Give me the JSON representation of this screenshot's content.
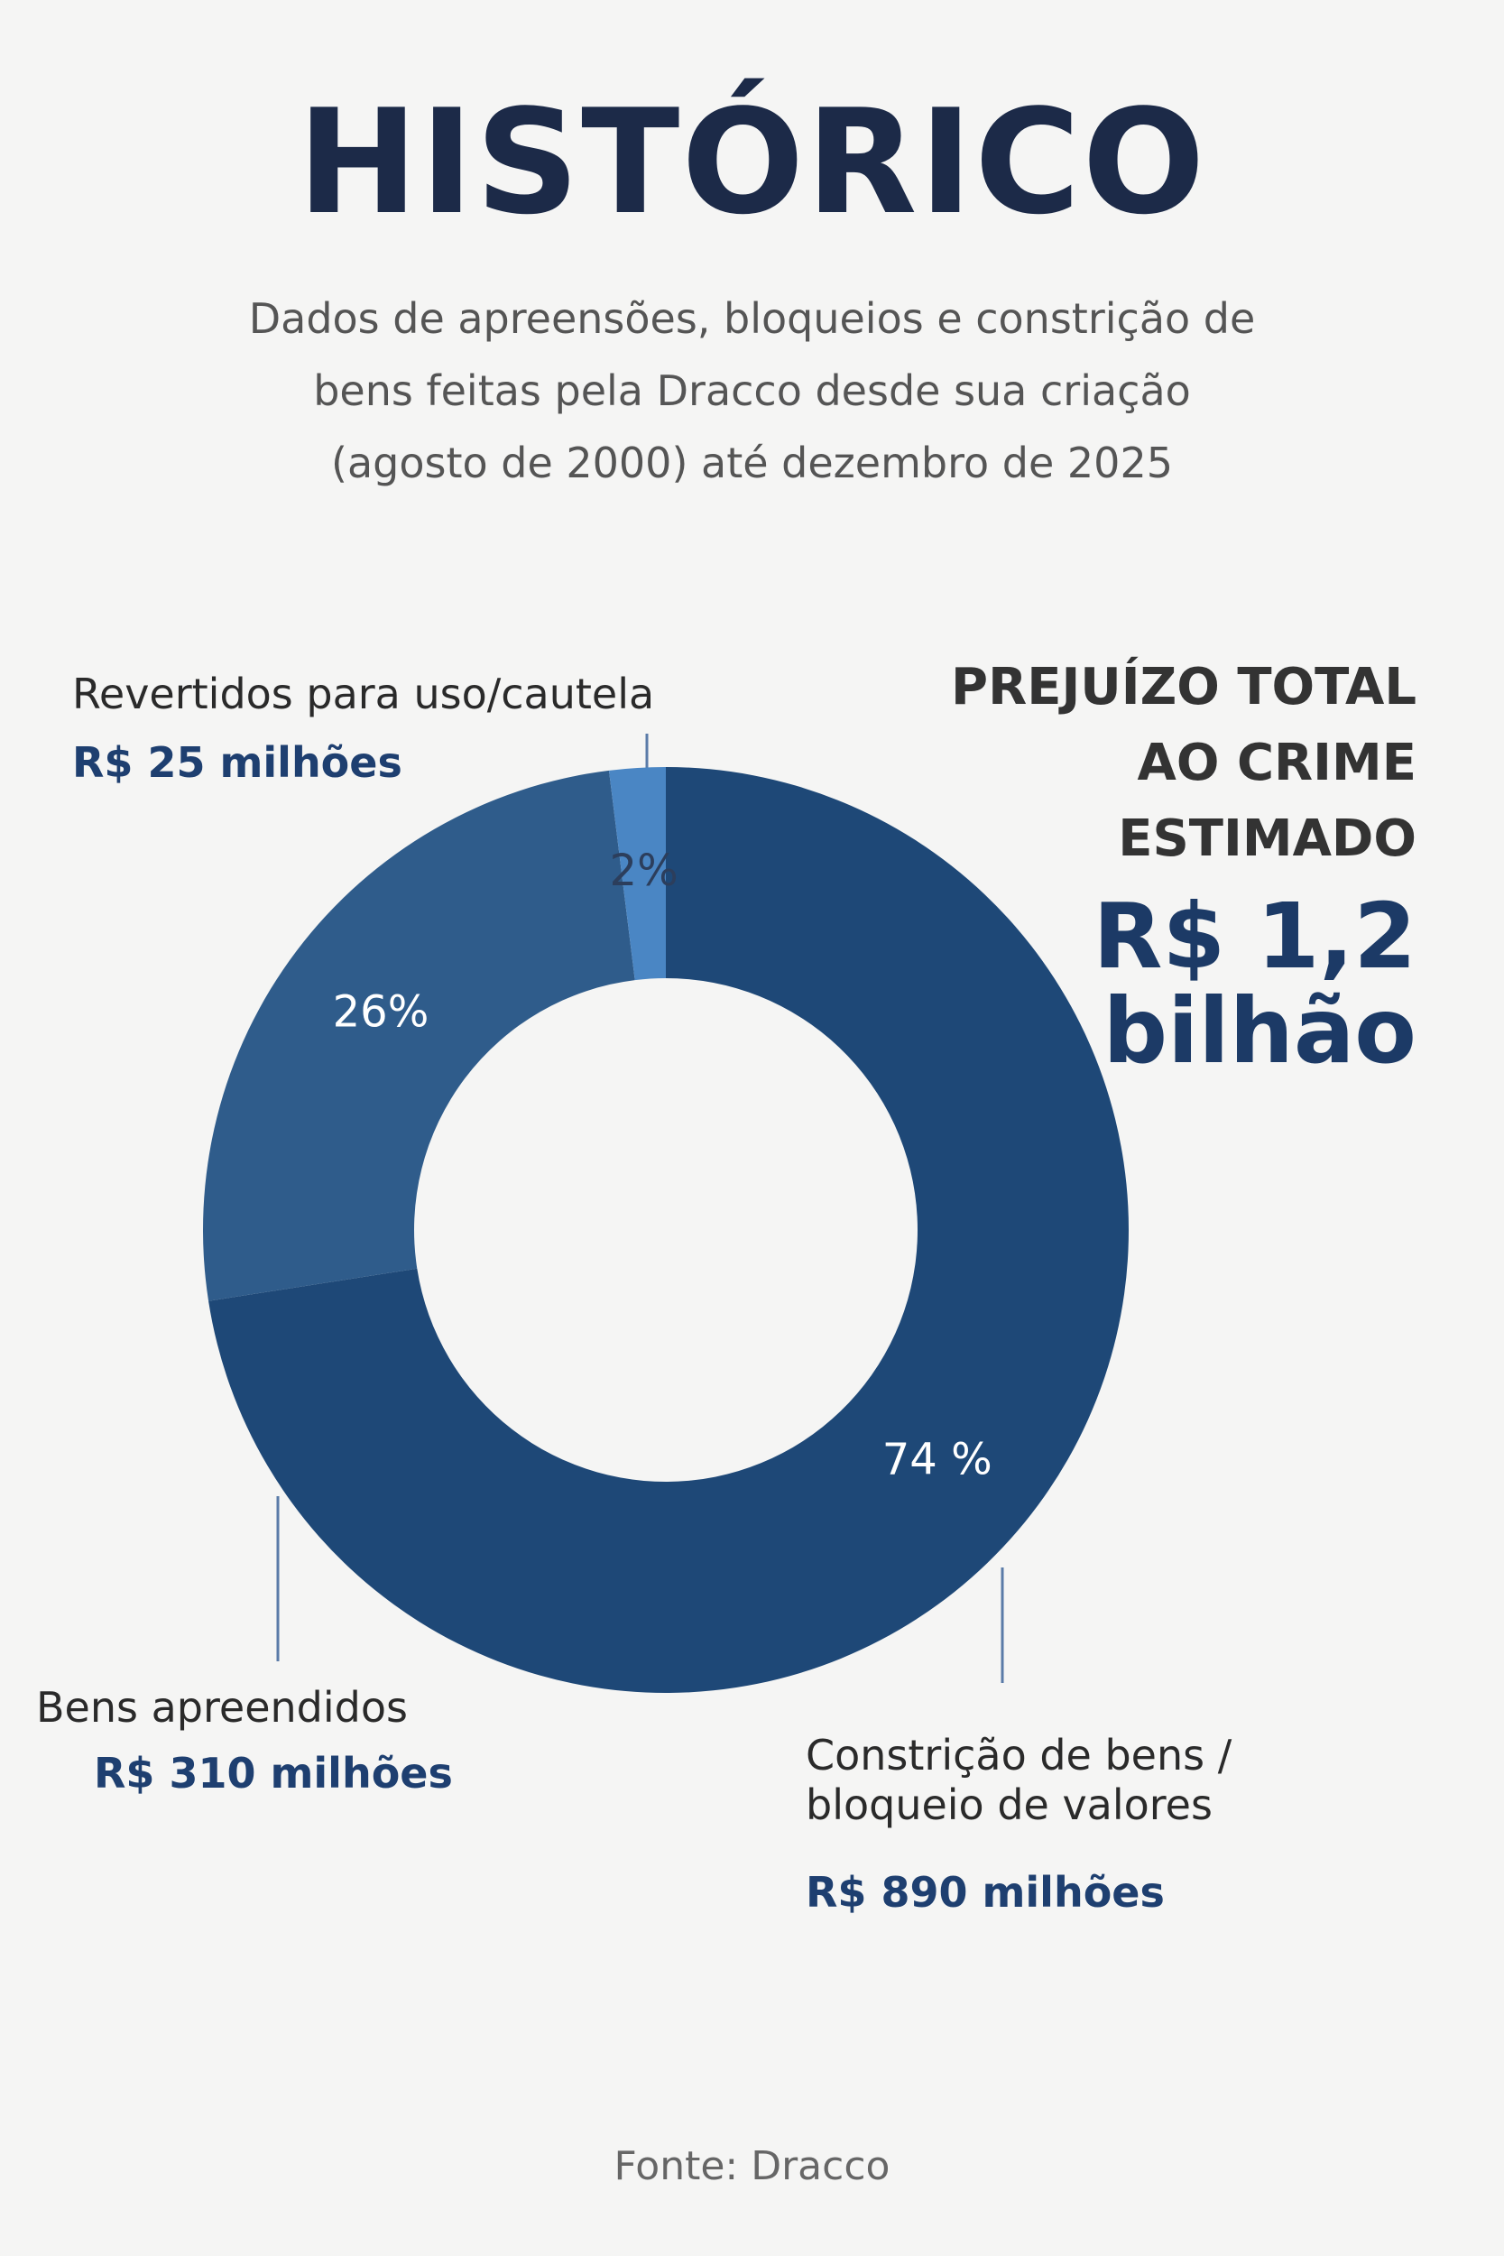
{
  "chart_data": {
    "type": "donut",
    "title": "HISTÓRICO",
    "subtitle": [
      "Dados de apreensões, bloqueios e constrição de",
      "bens feitas pela Dracco desde sua criação",
      "(agosto de 2000) até dezembro de 2025"
    ],
    "categories": [
      "Constrição de bens / bloqueio de valores",
      "Bens apreendidos",
      "Revertidos para uso/cautela"
    ],
    "values": [
      74,
      26,
      2
    ],
    "value_labels": [
      "74 %",
      "26%",
      "2%"
    ],
    "amounts": [
      "R$ 890 milhões",
      "R$ 310 milhões",
      "R$ 25 milhões"
    ],
    "colors": [
      "#1e4877",
      "#2f5c8b",
      "#4a86c4"
    ],
    "annotation": {
      "label": "PREJUÍZO TOTAL AO CRIME ESTIMADO",
      "value": "R$ 1,2 bilhão"
    },
    "source": "Fonte: Dracco"
  }
}
